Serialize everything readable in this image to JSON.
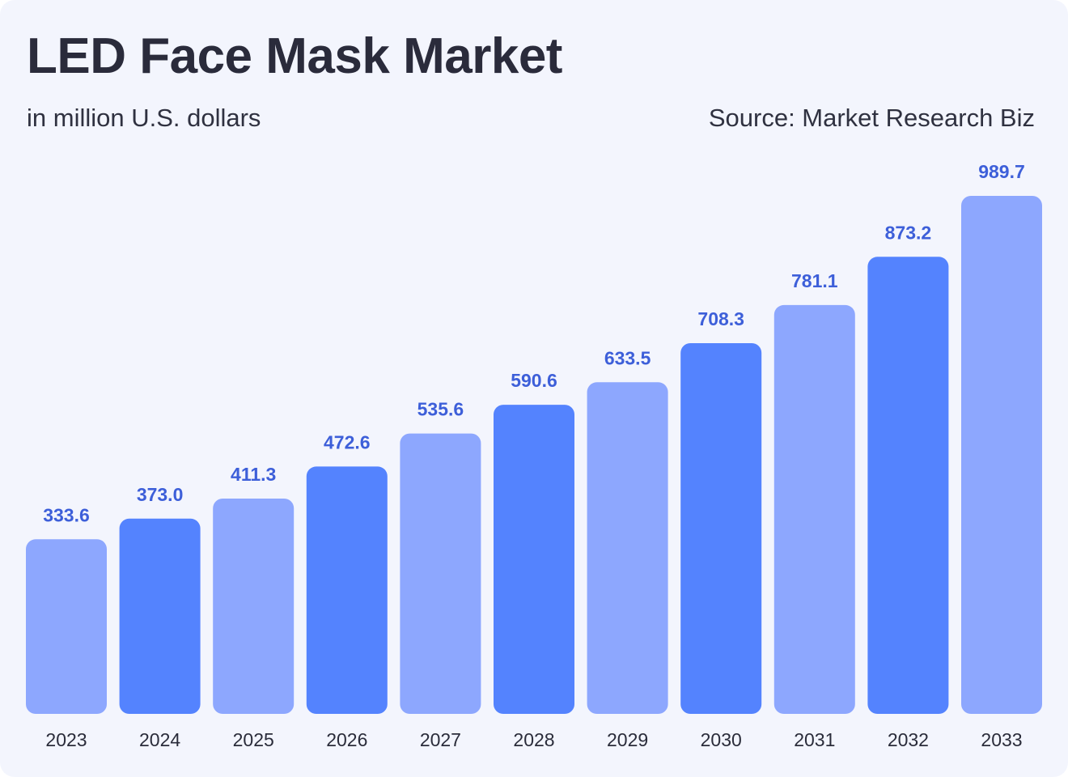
{
  "title": "LED Face Mask Market",
  "subtitle": "in million U.S. dollars",
  "source": "Source: Market Research Biz",
  "colors": {
    "background": "#f3f5fd",
    "bar_light": "#8da7fe",
    "bar_dark": "#5483fe",
    "value_label": "#3d5fd9"
  },
  "chart_data": {
    "type": "bar",
    "categories": [
      "2023",
      "2024",
      "2025",
      "2026",
      "2027",
      "2028",
      "2029",
      "2030",
      "2031",
      "2032",
      "2033"
    ],
    "values": [
      333.6,
      373.0,
      411.3,
      472.6,
      535.6,
      590.6,
      633.5,
      708.3,
      781.1,
      873.2,
      989.7
    ],
    "value_labels": [
      "333.6",
      "373.0",
      "411.3",
      "472.6",
      "535.6",
      "590.6",
      "633.5",
      "708.3",
      "781.1",
      "873.2",
      "989.7"
    ],
    "bar_colors": [
      "#8da7fe",
      "#5483fe",
      "#8da7fe",
      "#5483fe",
      "#8da7fe",
      "#5483fe",
      "#8da7fe",
      "#5483fe",
      "#8da7fe",
      "#5483fe",
      "#8da7fe"
    ],
    "title": "LED Face Mask Market",
    "xlabel": "",
    "ylabel": "",
    "ylim": [
      0,
      1000
    ],
    "grid": false,
    "legend": "none"
  }
}
